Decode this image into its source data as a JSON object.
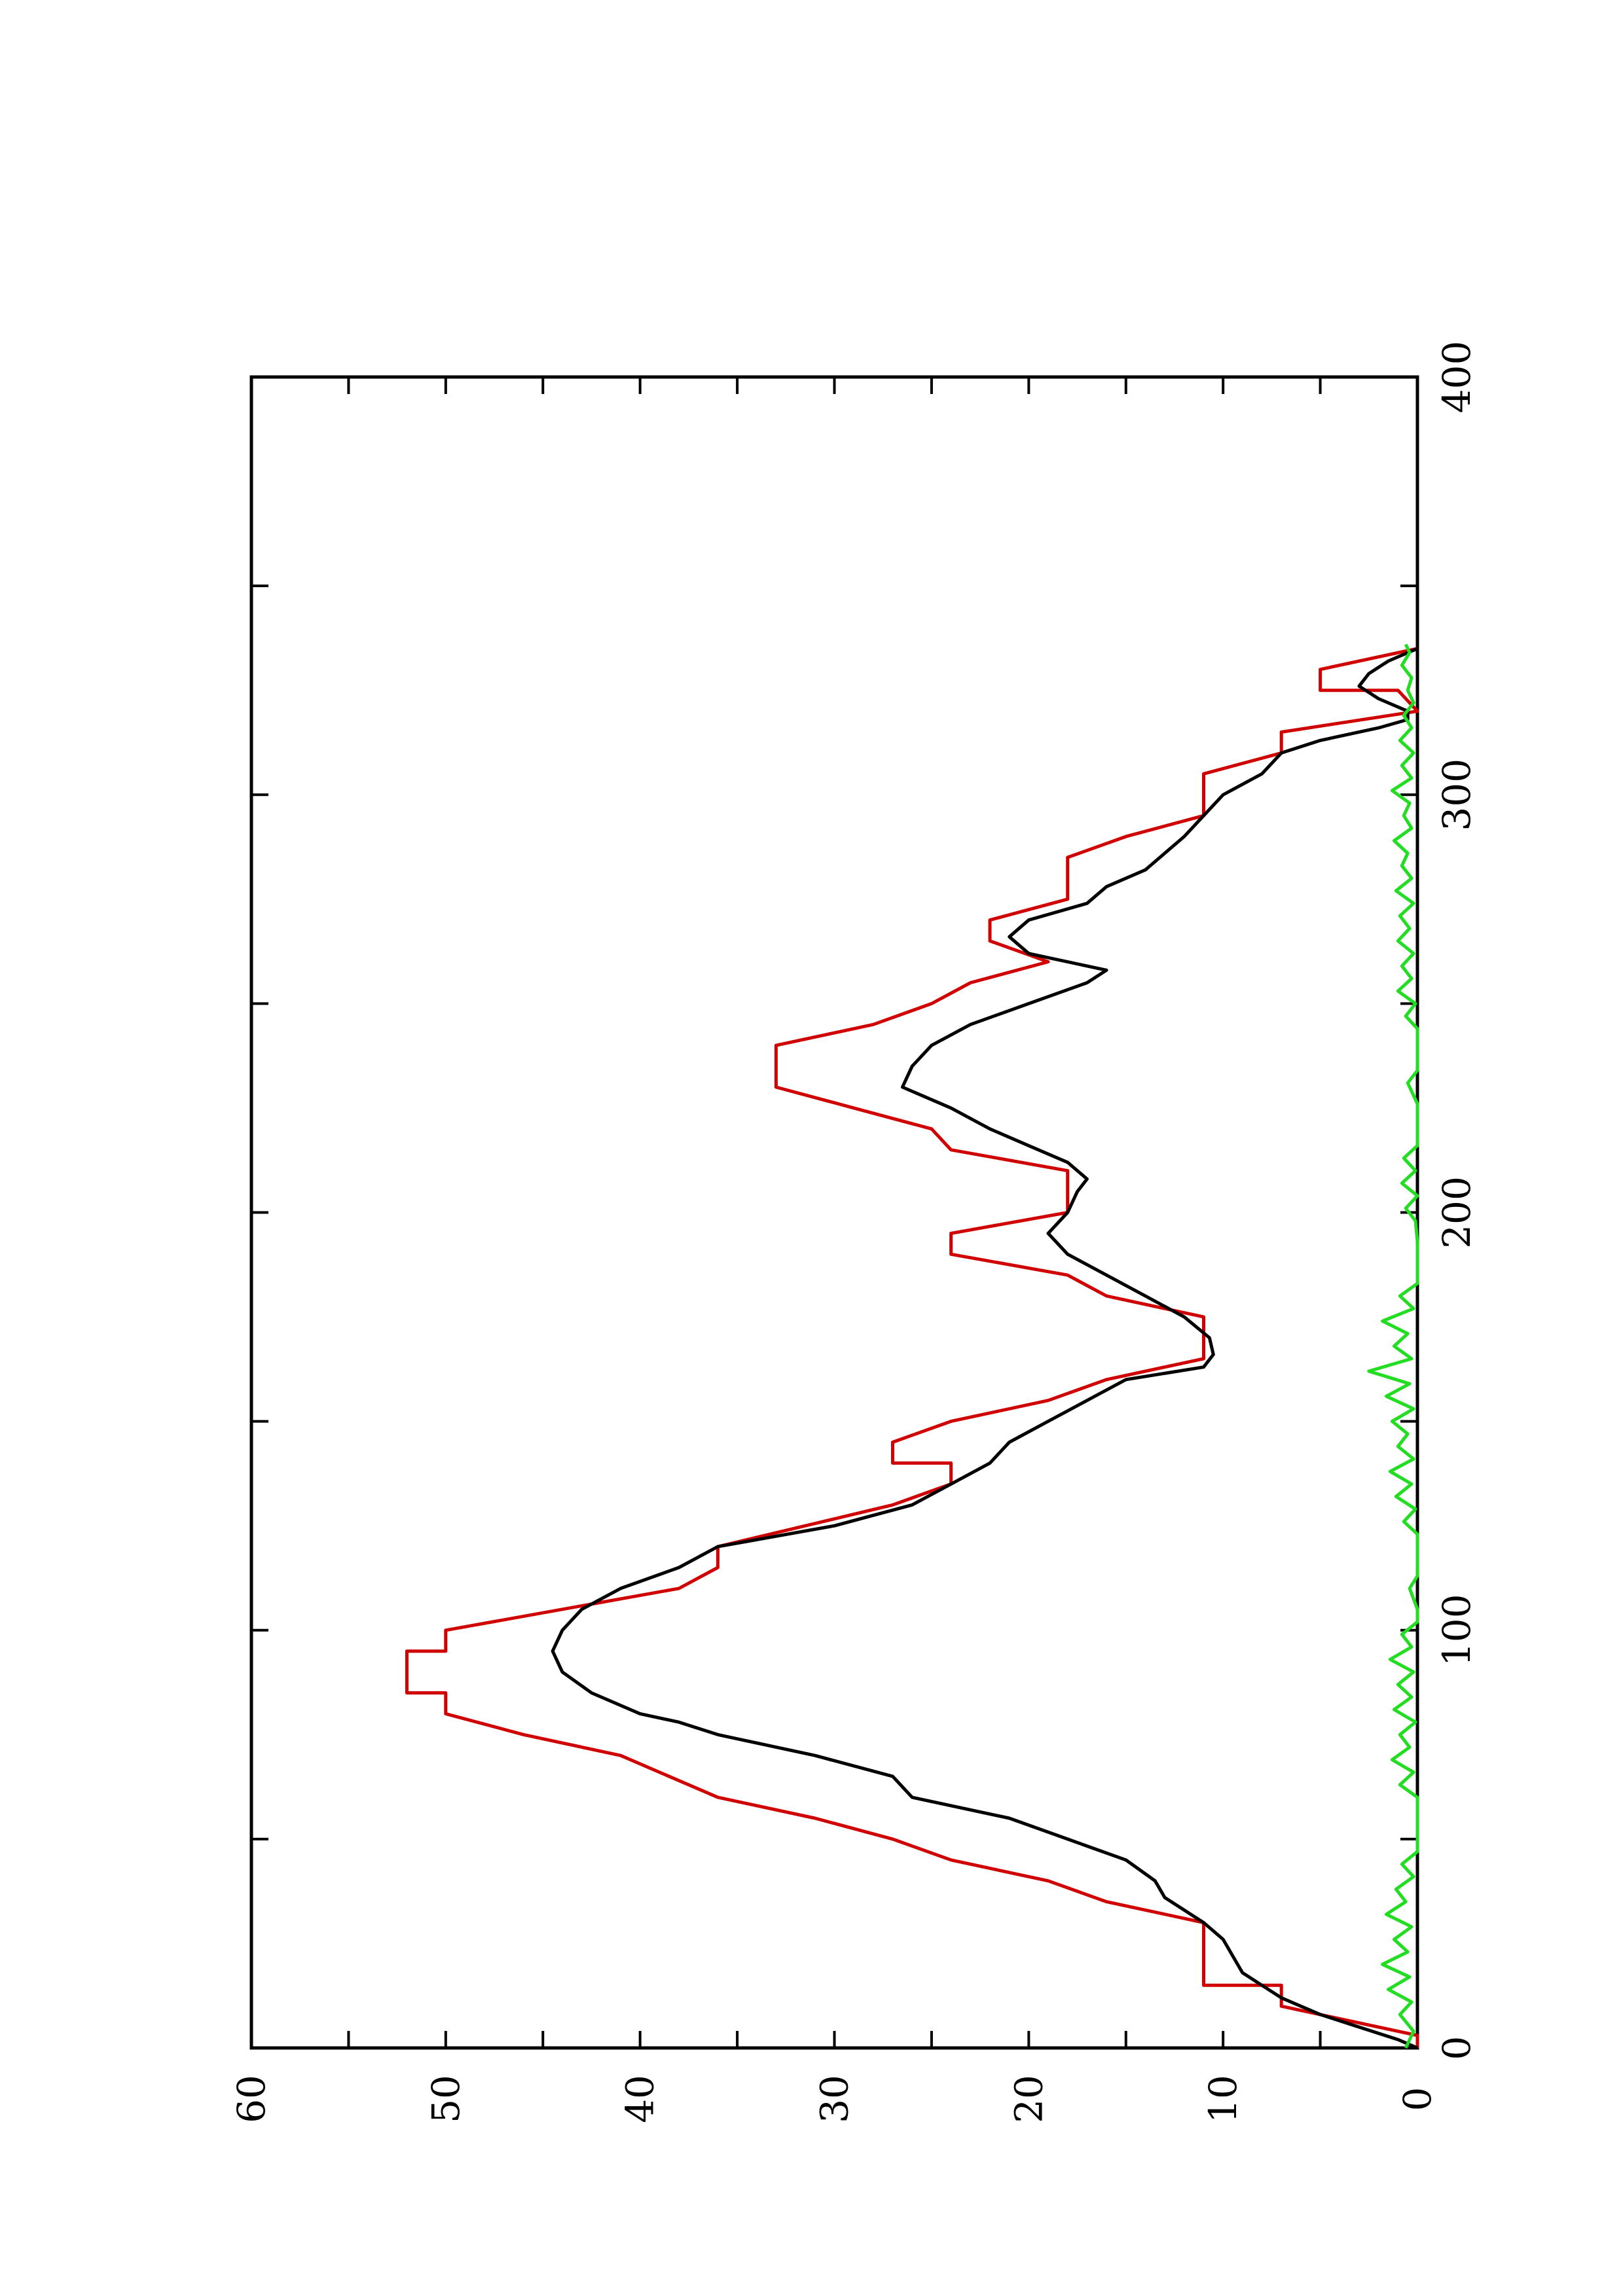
{
  "chart_data": {
    "type": "line",
    "title": "",
    "xlabel": "",
    "ylabel": "",
    "orientation": "rotated 90 degrees counter-clockwise (x axis runs bottom-to-top, y axis runs left-to-right)",
    "xlim": [
      0,
      400
    ],
    "ylim": [
      0,
      60
    ],
    "x_ticks": [
      0,
      100,
      200,
      300,
      400
    ],
    "y_ticks": [
      0,
      10,
      20,
      30,
      40,
      50,
      60
    ],
    "x_tick_labels": [
      "0",
      "100",
      "200",
      "300",
      "400"
    ],
    "y_tick_labels": [
      "0",
      "10",
      "20",
      "30",
      "40",
      "50",
      "60"
    ],
    "grid": false,
    "legend": "none",
    "series": [
      {
        "color": "#d00000",
        "style": "step",
        "points": [
          [
            0,
            0
          ],
          [
            3,
            0
          ],
          [
            10,
            7
          ],
          [
            15,
            7
          ],
          [
            15,
            11
          ],
          [
            30,
            11
          ],
          [
            35,
            16
          ],
          [
            40,
            19
          ],
          [
            45,
            24
          ],
          [
            50,
            27
          ],
          [
            55,
            31
          ],
          [
            60,
            36
          ],
          [
            70,
            41
          ],
          [
            75,
            46
          ],
          [
            80,
            50
          ],
          [
            85,
            50
          ],
          [
            85,
            52
          ],
          [
            95,
            52
          ],
          [
            95,
            50
          ],
          [
            100,
            50
          ],
          [
            110,
            38
          ],
          [
            115,
            36
          ],
          [
            120,
            36
          ],
          [
            130,
            27
          ],
          [
            135,
            24
          ],
          [
            140,
            24
          ],
          [
            140,
            27
          ],
          [
            145,
            27
          ],
          [
            150,
            24
          ],
          [
            155,
            19
          ],
          [
            160,
            16
          ],
          [
            165,
            11
          ],
          [
            175,
            11
          ],
          [
            180,
            16
          ],
          [
            185,
            18
          ],
          [
            190,
            24
          ],
          [
            195,
            24
          ],
          [
            200,
            18
          ],
          [
            205,
            18
          ],
          [
            210,
            18
          ],
          [
            215,
            24
          ],
          [
            220,
            25
          ],
          [
            225,
            29
          ],
          [
            230,
            33
          ],
          [
            240,
            33
          ],
          [
            245,
            28
          ],
          [
            250,
            25
          ],
          [
            255,
            23
          ],
          [
            260,
            19
          ],
          [
            265,
            22
          ],
          [
            270,
            22
          ],
          [
            275,
            18
          ],
          [
            280,
            18
          ],
          [
            285,
            18
          ],
          [
            290,
            15
          ],
          [
            295,
            11
          ],
          [
            305,
            11
          ],
          [
            310,
            7
          ],
          [
            315,
            7
          ],
          [
            320,
            0
          ],
          [
            325,
            1
          ],
          [
            325,
            5
          ],
          [
            330,
            5
          ],
          [
            335,
            0
          ]
        ]
      },
      {
        "color": "#000000",
        "style": "line",
        "points": [
          [
            0,
            0
          ],
          [
            2,
            1
          ],
          [
            5,
            3
          ],
          [
            8,
            5
          ],
          [
            12,
            7
          ],
          [
            15,
            8
          ],
          [
            18,
            9
          ],
          [
            22,
            9.5
          ],
          [
            26,
            10
          ],
          [
            30,
            11
          ],
          [
            33,
            12
          ],
          [
            36,
            13
          ],
          [
            40,
            13.5
          ],
          [
            45,
            15
          ],
          [
            50,
            18
          ],
          [
            55,
            21
          ],
          [
            60,
            26
          ],
          [
            65,
            27
          ],
          [
            70,
            31
          ],
          [
            75,
            36
          ],
          [
            78,
            38
          ],
          [
            80,
            40
          ],
          [
            85,
            42.5
          ],
          [
            90,
            44
          ],
          [
            95,
            44.5
          ],
          [
            100,
            44
          ],
          [
            105,
            43
          ],
          [
            110,
            41
          ],
          [
            115,
            38
          ],
          [
            120,
            36
          ],
          [
            125,
            30
          ],
          [
            130,
            26
          ],
          [
            135,
            24
          ],
          [
            140,
            22
          ],
          [
            145,
            21
          ],
          [
            150,
            19
          ],
          [
            155,
            17
          ],
          [
            160,
            15
          ],
          [
            163,
            11
          ],
          [
            166,
            10.5
          ],
          [
            170,
            10.7
          ],
          [
            175,
            12
          ],
          [
            180,
            14
          ],
          [
            185,
            16
          ],
          [
            190,
            18
          ],
          [
            195,
            19
          ],
          [
            200,
            18
          ],
          [
            205,
            17.5
          ],
          [
            208,
            17
          ],
          [
            212,
            18
          ],
          [
            216,
            20
          ],
          [
            220,
            22
          ],
          [
            225,
            24
          ],
          [
            230,
            26.5
          ],
          [
            235,
            26
          ],
          [
            240,
            25
          ],
          [
            245,
            23
          ],
          [
            250,
            20
          ],
          [
            255,
            17
          ],
          [
            258,
            16
          ],
          [
            262,
            20
          ],
          [
            266,
            21
          ],
          [
            270,
            20
          ],
          [
            274,
            17
          ],
          [
            278,
            16
          ],
          [
            282,
            14
          ],
          [
            286,
            13
          ],
          [
            290,
            12
          ],
          [
            295,
            11
          ],
          [
            300,
            10
          ],
          [
            305,
            8
          ],
          [
            310,
            7
          ],
          [
            313,
            5
          ],
          [
            316,
            2
          ],
          [
            318,
            0.5
          ],
          [
            320,
            0.5
          ],
          [
            323,
            2
          ],
          [
            326,
            3
          ],
          [
            329,
            2.5
          ],
          [
            332,
            1.5
          ],
          [
            335,
            0
          ]
        ]
      },
      {
        "color": "#22dd22",
        "style": "noise",
        "points": [
          [
            0,
            0.6
          ],
          [
            4,
            0.2
          ],
          [
            8,
            0.9
          ],
          [
            11,
            0.3
          ],
          [
            14,
            1.5
          ],
          [
            17,
            0.4
          ],
          [
            20,
            1.8
          ],
          [
            23,
            0.5
          ],
          [
            26,
            1.2
          ],
          [
            29,
            0.3
          ],
          [
            32,
            1.6
          ],
          [
            35,
            0.6
          ],
          [
            38,
            1.1
          ],
          [
            41,
            0.2
          ],
          [
            44,
            0.8
          ],
          [
            47,
            0
          ],
          [
            50,
            0
          ],
          [
            55,
            0
          ],
          [
            60,
            0
          ],
          [
            63,
            0.9
          ],
          [
            66,
            0.2
          ],
          [
            69,
            1.3
          ],
          [
            72,
            0.4
          ],
          [
            75,
            0.9
          ],
          [
            78,
            0.1
          ],
          [
            81,
            1.2
          ],
          [
            84,
            0.3
          ],
          [
            87,
            1.0
          ],
          [
            90,
            0.2
          ],
          [
            93,
            1.4
          ],
          [
            96,
            0.3
          ],
          [
            99,
            0.8
          ],
          [
            102,
            0
          ],
          [
            105,
            0
          ],
          [
            110,
            0.4
          ],
          [
            113,
            0
          ],
          [
            118,
            0
          ],
          [
            123,
            0
          ],
          [
            126,
            0.7
          ],
          [
            129,
            0.1
          ],
          [
            132,
            1.1
          ],
          [
            135,
            0.3
          ],
          [
            138,
            1.4
          ],
          [
            141,
            0.2
          ],
          [
            144,
            1.0
          ],
          [
            147,
            0.5
          ],
          [
            150,
            1.3
          ],
          [
            153,
            0.2
          ],
          [
            156,
            1.6
          ],
          [
            159,
            0.4
          ],
          [
            162,
            2.5
          ],
          [
            165,
            0.3
          ],
          [
            168,
            1.2
          ],
          [
            171,
            0.5
          ],
          [
            174,
            1.8
          ],
          [
            177,
            0.2
          ],
          [
            180,
            0.9
          ],
          [
            183,
            0
          ],
          [
            188,
            0
          ],
          [
            193,
            0
          ],
          [
            198,
            0.1
          ],
          [
            201,
            0.6
          ],
          [
            204,
            0
          ],
          [
            207,
            0.8
          ],
          [
            210,
            0.1
          ],
          [
            213,
            0.7
          ],
          [
            216,
            0
          ],
          [
            221,
            0
          ],
          [
            226,
            0
          ],
          [
            231,
            0.5
          ],
          [
            234,
            0
          ],
          [
            239,
            0
          ],
          [
            244,
            0
          ],
          [
            247,
            0.6
          ],
          [
            250,
            0.1
          ],
          [
            253,
            1.0
          ],
          [
            256,
            0.3
          ],
          [
            259,
            0.8
          ],
          [
            262,
            0.2
          ],
          [
            265,
            1.0
          ],
          [
            268,
            0.4
          ],
          [
            271,
            0.9
          ],
          [
            274,
            0.2
          ],
          [
            277,
            1.1
          ],
          [
            280,
            0.3
          ],
          [
            283,
            0.8
          ],
          [
            286,
            0.5
          ],
          [
            289,
            1.2
          ],
          [
            292,
            0.3
          ],
          [
            295,
            0.7
          ],
          [
            298,
            0.4
          ],
          [
            301,
            1.3
          ],
          [
            304,
            0.3
          ],
          [
            307,
            0.8
          ],
          [
            310,
            0.2
          ],
          [
            313,
            0.9
          ],
          [
            316,
            0.3
          ],
          [
            319,
            0.7
          ],
          [
            322,
            0.2
          ],
          [
            325,
            0.5
          ],
          [
            328,
            0.3
          ],
          [
            331,
            0.8
          ],
          [
            334,
            0.4
          ],
          [
            336,
            0.6
          ]
        ]
      }
    ]
  }
}
